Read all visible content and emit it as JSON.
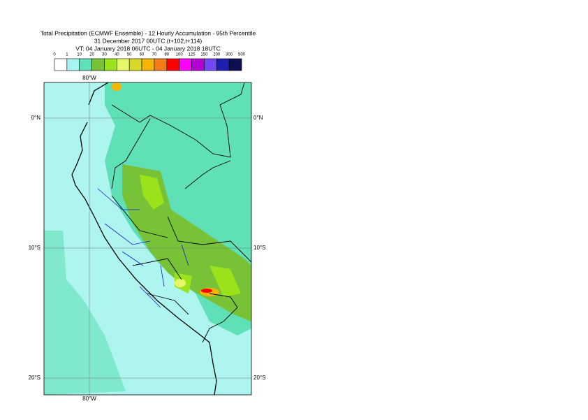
{
  "header": {
    "title": "Total Precipitation (ECMWF Ensemble) - 12 Hourly Accumulation - 95th Percentile",
    "base_time": "31 December 2017 00UTC (t+102,t+114)",
    "valid_time": "VT: 04 January 2018 06UTC - 04 January 2018 18UTC"
  },
  "legend": {
    "thresholds": [
      0,
      1,
      10,
      20,
      30,
      40,
      50,
      60,
      70,
      80,
      100,
      125,
      150,
      200,
      300,
      500
    ],
    "colors": [
      "#ffffff",
      "#a8f4ee",
      "#5fe0b6",
      "#78c238",
      "#9be21a",
      "#e6f86a",
      "#d8d82a",
      "#f4b400",
      "#f47c18",
      "#ff0000",
      "#ff00ff",
      "#b400d6",
      "#7447f4",
      "#1e1eb0",
      "#0e0e52"
    ]
  },
  "map": {
    "lon_labels": {
      "top": "80°W",
      "bottom": "80°W"
    },
    "lat_labels": {
      "left": [
        "0°N",
        "10°S",
        "20°S"
      ],
      "right": [
        "0°N",
        "10°S",
        "20°S"
      ]
    }
  }
}
